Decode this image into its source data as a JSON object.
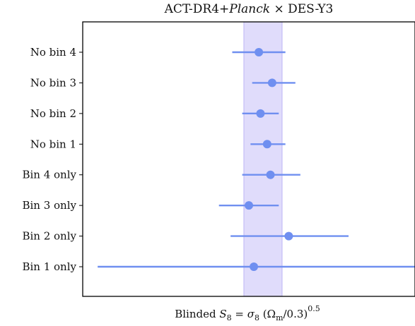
{
  "chart_data": {
    "type": "scatter",
    "title": "ACT-DR4+Planck × DES-Y3",
    "xlabel": "Blinded S8 = σ8 (Ωm/0.3)^0.5",
    "ylabel": "",
    "xticks_visible": false,
    "grid": false,
    "categories": [
      "No bin 4",
      "No bin 3",
      "No bin 2",
      "No bin 1",
      "Bin 4 only",
      "Bin 3 only",
      "Bin 2 only",
      "Bin 1 only"
    ],
    "xlim": [
      0,
      1
    ],
    "reference_band": {
      "low": 0.485,
      "high": 0.6,
      "color": "#e0dcfb"
    },
    "series": [
      {
        "color": "#6f8ff0",
        "points": [
          {
            "label": "No bin 4",
            "value": 0.53,
            "err_low": 0.45,
            "err_high": 0.61
          },
          {
            "label": "No bin 3",
            "value": 0.57,
            "err_low": 0.51,
            "err_high": 0.64
          },
          {
            "label": "No bin 2",
            "value": 0.535,
            "err_low": 0.48,
            "err_high": 0.59
          },
          {
            "label": "No bin 1",
            "value": 0.555,
            "err_low": 0.505,
            "err_high": 0.61
          },
          {
            "label": "Bin 4 only",
            "value": 0.565,
            "err_low": 0.48,
            "err_high": 0.655
          },
          {
            "label": "Bin 3 only",
            "value": 0.5,
            "err_low": 0.41,
            "err_high": 0.59
          },
          {
            "label": "Bin 2 only",
            "value": 0.62,
            "err_low": 0.445,
            "err_high": 0.8
          },
          {
            "label": "Bin 1 only",
            "value": 0.515,
            "err_low": 0.045,
            "err_high": 1.01
          }
        ]
      }
    ]
  }
}
